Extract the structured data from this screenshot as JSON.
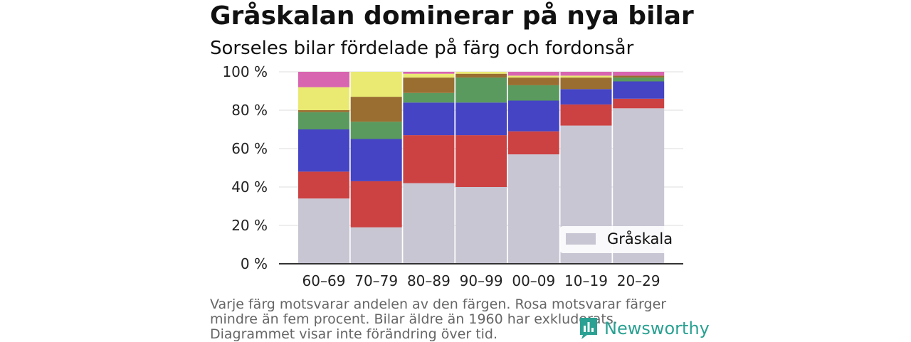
{
  "title": "Gråskalan dominerar på nya bilar",
  "subtitle": "Sorseles bilar fördelade på färg och fordonsår",
  "note": "Varje färg motsvarar andelen av den färgen. Rosa motsvarar färger mindre än fem procent. Bilar äldre än 1960 har exkluderats. Diagrammet visar inte förändring över tid.",
  "brand": {
    "name": "Newsworthy",
    "icon": "newsworthy-logo-icon",
    "color": "#2aa192"
  },
  "chart_data": {
    "type": "bar",
    "stacked": true,
    "categories": [
      "60–69",
      "70–79",
      "80–89",
      "90–99",
      "00–09",
      "10–19",
      "20–29"
    ],
    "y_ticks": [
      "0 %",
      "20 %",
      "40 %",
      "60 %",
      "80 %",
      "100 %"
    ],
    "ylim": [
      0,
      100
    ],
    "grid": true,
    "legend": {
      "position": "bottom-right",
      "entries": [
        "Gråskala"
      ]
    },
    "series": [
      {
        "name": "Gråskala",
        "color": "#c8c6d3",
        "values": [
          34,
          19,
          42,
          40,
          57,
          72,
          81
        ]
      },
      {
        "color": "#cc4242",
        "values": [
          14,
          24,
          25,
          27,
          12,
          11,
          5
        ]
      },
      {
        "color": "#4444c4",
        "values": [
          22,
          22,
          17,
          17,
          16,
          8,
          9
        ]
      },
      {
        "color": "#5a9a5e",
        "values": [
          9,
          9,
          5,
          13,
          8,
          0,
          2
        ]
      },
      {
        "color": "#9a6e30",
        "values": [
          1,
          13,
          8,
          2,
          4,
          6,
          1
        ]
      },
      {
        "color": "#eaea72",
        "values": [
          12,
          13,
          2,
          1,
          1,
          1,
          0
        ]
      },
      {
        "color": "#d865b0",
        "values": [
          8,
          0,
          1,
          0,
          2,
          2,
          2
        ]
      }
    ]
  }
}
